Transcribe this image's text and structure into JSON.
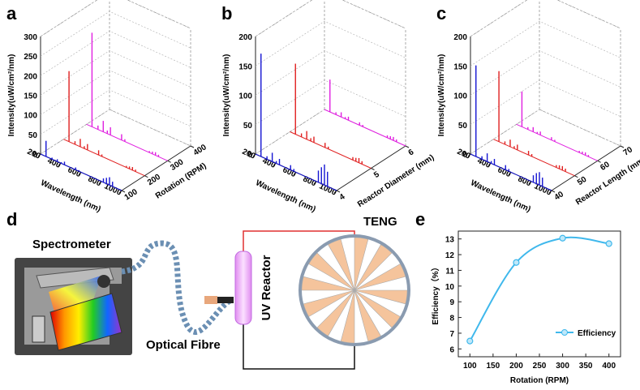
{
  "chart_data": [
    {
      "type": "waterfall3d",
      "panel": "a",
      "xlabel": "Wavelength (nm)",
      "ylabel": "Intensity(uW/cm²/nm)",
      "zlabel": "Rotation (RPM)",
      "xlim": [
        200,
        1000
      ],
      "xticks": [
        200,
        400,
        600,
        800,
        1000
      ],
      "ylim": [
        0,
        300
      ],
      "yticks": [
        0,
        50,
        100,
        150,
        200,
        250,
        300
      ],
      "zlim": [
        100,
        400
      ],
      "zticks": [
        100,
        200,
        300,
        400
      ],
      "x": [
        254,
        313,
        365,
        405,
        436,
        546,
        578,
        820,
        850,
        880,
        910
      ],
      "series": [
        {
          "color": "#1414d2",
          "z": 100,
          "values": [
            40,
            4,
            6,
            3,
            8,
            6,
            3,
            10,
            15,
            20,
            12
          ]
        },
        {
          "color": "#e02020",
          "z": 200,
          "values": [
            180,
            8,
            20,
            6,
            15,
            12,
            5,
            4,
            6,
            8,
            5
          ]
        },
        {
          "color": "#e020e0",
          "z": 300,
          "values": [
            240,
            10,
            28,
            8,
            20,
            15,
            6,
            4,
            6,
            8,
            5
          ]
        }
      ]
    },
    {
      "type": "waterfall3d",
      "panel": "b",
      "xlabel": "Wavelength (nm)",
      "ylabel": "Intensity(uW/cm²/nm)",
      "zlabel": "Reactor Diameter (mm)",
      "xlim": [
        200,
        1000
      ],
      "xticks": [
        200,
        400,
        600,
        800,
        1000
      ],
      "ylim": [
        0,
        200
      ],
      "yticks": [
        0,
        50,
        100,
        150,
        200
      ],
      "zlim": [
        4,
        6
      ],
      "zticks": [
        4,
        5,
        6
      ],
      "x": [
        254,
        313,
        365,
        405,
        436,
        546,
        578,
        820,
        850,
        880,
        910
      ],
      "series": [
        {
          "color": "#1414d2",
          "z": 4,
          "values": [
            175,
            5,
            15,
            4,
            10,
            8,
            4,
            20,
            28,
            35,
            25
          ]
        },
        {
          "color": "#e02020",
          "z": 5,
          "values": [
            120,
            6,
            14,
            5,
            10,
            8,
            4,
            5,
            6,
            8,
            5
          ]
        },
        {
          "color": "#e020e0",
          "z": 6,
          "values": [
            55,
            4,
            8,
            3,
            6,
            5,
            3,
            4,
            5,
            6,
            4
          ]
        }
      ]
    },
    {
      "type": "waterfall3d",
      "panel": "c",
      "xlabel": "Wavelength (nm)",
      "ylabel": "Intensity(uW/cm²/nm)",
      "zlabel": "Reactor Length (mm)",
      "xlim": [
        200,
        1000
      ],
      "xticks": [
        200,
        400,
        600,
        800,
        1000
      ],
      "ylim": [
        0,
        200
      ],
      "yticks": [
        0,
        50,
        100,
        150,
        200
      ],
      "zlim": [
        40,
        70
      ],
      "zticks": [
        40,
        50,
        60,
        70
      ],
      "x": [
        254,
        313,
        365,
        405,
        436,
        546,
        578,
        820,
        850,
        880,
        910
      ],
      "series": [
        {
          "color": "#1414d2",
          "z": 40,
          "values": [
            155,
            5,
            14,
            4,
            10,
            8,
            4,
            12,
            18,
            22,
            15
          ]
        },
        {
          "color": "#e02020",
          "z": 50,
          "values": [
            120,
            5,
            12,
            4,
            9,
            7,
            4,
            4,
            6,
            7,
            5
          ]
        },
        {
          "color": "#e020e0",
          "z": 60,
          "values": [
            60,
            4,
            8,
            3,
            6,
            5,
            3,
            3,
            4,
            5,
            3
          ]
        }
      ]
    },
    {
      "type": "line",
      "panel": "e",
      "xlabel": "Rotation (RPM)",
      "ylabel": "Efficiency（%）",
      "x": [
        100,
        200,
        300,
        400
      ],
      "xlim": [
        75,
        425
      ],
      "xticks": [
        100,
        150,
        200,
        250,
        300,
        350,
        400
      ],
      "ylim": [
        5.5,
        13.5
      ],
      "yticks": [
        6,
        7,
        8,
        9,
        10,
        11,
        12,
        13
      ],
      "legend": "lower right",
      "series": [
        {
          "name": "Efficiency",
          "color": "#3fb8ec",
          "values": [
            6.5,
            11.5,
            13.05,
            12.7
          ]
        }
      ]
    }
  ],
  "diagram": {
    "panel": "d",
    "spectrometer": "Spectrometer",
    "fibre": "Optical Fibre",
    "reactor": "UV Reactor",
    "teng": "TENG"
  }
}
